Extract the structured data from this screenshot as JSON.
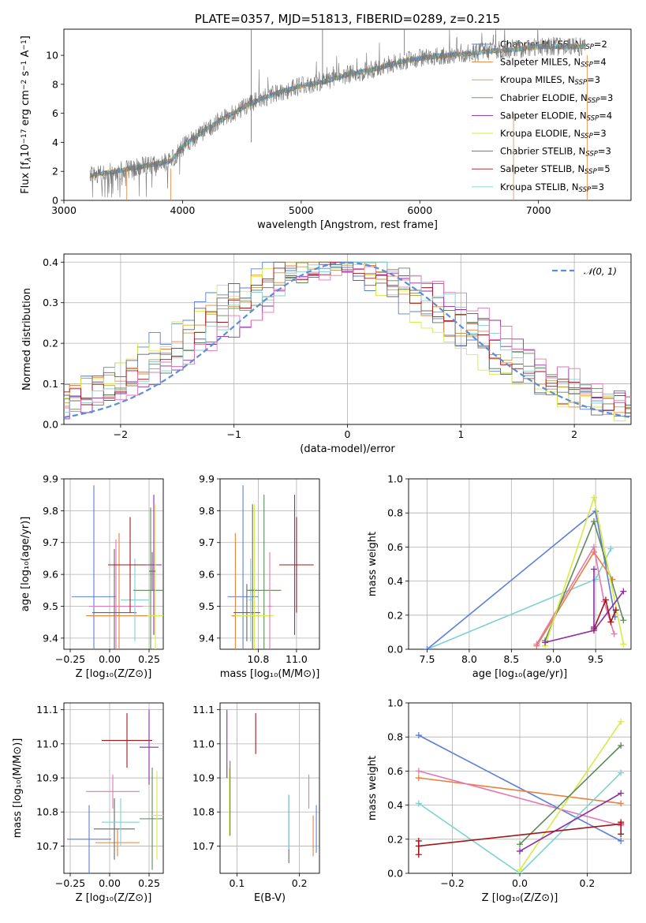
{
  "colors": {
    "Chabrier MILES": "#5b7fd9",
    "Salpeter MILES": "#e8823a",
    "Kroupa MILES": "#c79a4a",
    "Chabrier ELODIE": "#5e8a5a",
    "Salpeter ELODIE": "#8e2ba8",
    "Kroupa ELODIE": "#d7ea45",
    "Chabrier STELIB": "#666666",
    "Salpeter STELIB": "#a3171a",
    "Kroupa STELIB": "#7fd1d4",
    "pink": "#e577b3",
    "gauss": "#5b8ed6",
    "grid": "#b0b0b0"
  },
  "chart_data": [
    {
      "id": "spectrum",
      "type": "line",
      "title": "PLATE=0357, MJD=51813, FIBERID=0289, z=0.215",
      "xlabel": "wavelength [Angstrom, rest frame]",
      "ylabel": "Flux [f",
      "ylabel_parts": [
        "Flux [f",
        "λ",
        "10",
        "−17",
        " erg cm",
        "−2",
        " s",
        "−1",
        " A",
        "−1",
        "]"
      ],
      "xlim": [
        3000,
        7780
      ],
      "ylim": [
        0,
        11.8
      ],
      "xticks": [
        "3000",
        "4000",
        "5000",
        "6000",
        "7000"
      ],
      "yticks": [
        "0",
        "2",
        "4",
        "6",
        "8",
        "10"
      ],
      "continuum": {
        "x": [
          3220,
          3500,
          3700,
          3900,
          4000,
          4200,
          4400,
          4600,
          4800,
          5000,
          5200,
          5400,
          5600,
          5800,
          6000,
          6200,
          6400,
          6600,
          6800,
          7000,
          7200,
          7400
        ],
        "y": [
          1.7,
          2.1,
          2.4,
          2.7,
          3.7,
          4.9,
          5.9,
          6.8,
          7.4,
          7.9,
          8.2,
          8.7,
          9.0,
          9.5,
          9.8,
          10.0,
          10.1,
          10.3,
          10.4,
          10.6,
          10.6,
          10.6
        ]
      },
      "legend": [
        {
          "name": "Chabrier MILES, N",
          "sub": "SSP",
          "n": "=2"
        },
        {
          "name": "Salpeter MILES, N",
          "sub": "SSP",
          "n": "=4"
        },
        {
          "name": "Kroupa MILES, N",
          "sub": "SSP",
          "n": "=3"
        },
        {
          "name": "Chabrier ELODIE, N",
          "sub": "SSP",
          "n": "=3"
        },
        {
          "name": "Salpeter ELODIE, N",
          "sub": "SSP",
          "n": "=4"
        },
        {
          "name": "Kroupa ELODIE, N",
          "sub": "SSP",
          "n": "=3"
        },
        {
          "name": "Chabrier STELIB, N",
          "sub": "SSP",
          "n": "=3"
        },
        {
          "name": "Salpeter STELIB, N",
          "sub": "SSP",
          "n": "=5"
        },
        {
          "name": "Kroupa STELIB, N",
          "sub": "SSP",
          "n": "=3"
        }
      ]
    },
    {
      "id": "residuals",
      "type": "histogram",
      "xlabel": "(data-model)/error",
      "ylabel": "Normed distribution",
      "xlim": [
        -2.5,
        2.5
      ],
      "ylim": [
        0,
        0.42
      ],
      "xticks": [
        "−2",
        "−1",
        "0",
        "1",
        "2"
      ],
      "yticks": [
        "0.0",
        "0.1",
        "0.2",
        "0.3",
        "0.4"
      ],
      "legend": [
        {
          "name": "𝒩(0, 1)"
        }
      ]
    },
    {
      "id": "age_vs_Z",
      "type": "errorbar",
      "xlabel": "Z [log₁₀(Z/Z⊙)]",
      "ylabel": "age  [log₁₀(age/yr)]",
      "xlim": [
        -0.29,
        0.34
      ],
      "ylim": [
        9.365,
        9.9
      ],
      "xticks": [
        "−0.25",
        "0.00",
        "0.25"
      ],
      "yticks": [
        "9.4",
        "9.5",
        "9.6",
        "9.7",
        "9.8",
        "9.9"
      ],
      "points": [
        {
          "c": "Chabrier MILES",
          "x": -0.1,
          "xe": 0.14,
          "y": 9.53,
          "ye": 0.35
        },
        {
          "c": "Salpeter MILES",
          "x": 0.06,
          "xe": 0.21,
          "y": 9.47,
          "ye": 0.26
        },
        {
          "c": "pink",
          "x": 0.04,
          "xe": 0.17,
          "y": 9.5,
          "ye": 0.21
        },
        {
          "c": "Chabrier STELIB",
          "x": 0.03,
          "xe": 0.14,
          "y": 9.48,
          "ye": 0.2
        },
        {
          "c": "Kroupa STELIB",
          "x": 0.16,
          "xe": 0.09,
          "y": 9.52,
          "ye": 0.13
        },
        {
          "c": "Salpeter STELIB",
          "x": 0.13,
          "xe": 0.14,
          "y": 9.63,
          "ye": 0.15
        },
        {
          "c": "Chabrier ELODIE",
          "x": 0.26,
          "xe": 0.11,
          "y": 9.55,
          "ye": 0.26
        },
        {
          "c": "Salpeter ELODIE",
          "x": 0.28,
          "xe": 0.05,
          "y": 9.63,
          "ye": 0.22
        },
        {
          "c": "Kroupa ELODIE",
          "x": 0.29,
          "xe": 0.05,
          "y": 9.47,
          "ye": 0.35
        },
        {
          "c": "Chabrier STELIB",
          "x": 0.27,
          "xe": 0.02,
          "y": 9.61,
          "ye": 0.06
        }
      ]
    },
    {
      "id": "age_vs_mass",
      "type": "errorbar",
      "xlabel": "mass [log₁₀(M/M⊙)]",
      "ylabel": "",
      "xlim": [
        10.6,
        11.12
      ],
      "ylim": [
        9.365,
        9.9
      ],
      "xticks": [
        "10.8",
        "11.0"
      ],
      "yticks": [
        "9.4",
        "9.5",
        "9.6",
        "9.7",
        "9.8",
        "9.9"
      ],
      "points": [
        {
          "c": "Chabrier MILES",
          "x": 10.72,
          "xe": 0.08,
          "y": 9.53,
          "ye": 0.35
        },
        {
          "c": "Salpeter MILES",
          "x": 10.68,
          "xe": 0.02,
          "y": 9.47,
          "ye": 0.26
        },
        {
          "c": "Chabrier STELIB",
          "x": 10.74,
          "xe": 0.07,
          "y": 9.48,
          "ye": 0.09
        },
        {
          "c": "Chabrier STELIB",
          "x": 10.77,
          "xe": 0.02,
          "y": 9.55,
          "ye": 0.27
        },
        {
          "c": "Kroupa STELIB",
          "x": 10.76,
          "xe": 0.01,
          "y": 9.52,
          "ye": 0.13
        },
        {
          "c": "Chabrier ELODIE",
          "x": 10.83,
          "xe": 0.09,
          "y": 9.55,
          "ye": 0.3
        },
        {
          "c": "Kroupa ELODIE",
          "x": 10.78,
          "xe": 0.1,
          "y": 9.47,
          "ye": 0.35
        },
        {
          "c": "pink",
          "x": 10.86,
          "xe": 0.01,
          "y": 9.5,
          "ye": 0.17
        },
        {
          "c": "Salpeter ELODIE",
          "x": 10.99,
          "xe": 0.06,
          "y": 9.63,
          "ye": 0.22
        },
        {
          "c": "Salpeter STELIB",
          "x": 11.0,
          "xe": 0.09,
          "y": 9.63,
          "ye": 0.15
        }
      ]
    },
    {
      "id": "weight_vs_age",
      "type": "line",
      "xlabel": "age  [log₁₀(age/yr)]",
      "ylabel": "mass weight",
      "xlim": [
        7.28,
        9.92
      ],
      "ylim": [
        0,
        1.0
      ],
      "xticks": [
        "7.5",
        "8.0",
        "8.5",
        "9.0",
        "9.5"
      ],
      "yticks": [
        "0.0",
        "0.2",
        "0.4",
        "0.6",
        "0.8",
        "1.0"
      ],
      "series": [
        {
          "c": "Kroupa STELIB",
          "x": [
            7.5,
            9.5,
            9.68
          ],
          "y": [
            0.0,
            0.41,
            0.59
          ]
        },
        {
          "c": "Chabrier MILES",
          "x": [
            7.5,
            9.5,
            9.73
          ],
          "y": [
            0.0,
            0.81,
            0.19
          ]
        },
        {
          "c": "Salpeter MILES",
          "x": [
            8.8,
            9.48,
            9.7
          ],
          "y": [
            0.02,
            0.57,
            0.41
          ]
        },
        {
          "c": "pink",
          "x": [
            8.8,
            9.48,
            9.6,
            9.72
          ],
          "y": [
            0.03,
            0.6,
            0.28,
            0.09
          ]
        },
        {
          "c": "Chabrier ELODIE",
          "x": [
            8.9,
            9.48,
            9.83
          ],
          "y": [
            0.05,
            0.75,
            0.17
          ]
        },
        {
          "c": "Kroupa ELODIE",
          "x": [
            8.9,
            9.48,
            9.83
          ],
          "y": [
            0.02,
            0.89,
            0.03
          ]
        },
        {
          "c": "Salpeter ELODIE",
          "x": [
            8.9,
            9.48,
            9.83
          ],
          "y": [
            0.04,
            0.11,
            0.34
          ]
        },
        {
          "c": "Salpeter STELIB",
          "x": [
            9.48,
            9.62,
            9.68,
            9.74
          ],
          "y": [
            0.12,
            0.29,
            0.16,
            0.23
          ]
        },
        {
          "c": "Salpeter ELODIE",
          "x": [
            9.48,
            9.48
          ],
          "y": [
            0.13,
            0.47
          ]
        }
      ]
    },
    {
      "id": "mass_vs_Z",
      "type": "errorbar",
      "xlabel": "Z [log₁₀(Z/Z⊙)]",
      "ylabel": "mass [log₁₀(M/M⊙)]",
      "xlim": [
        -0.29,
        0.34
      ],
      "ylim": [
        10.62,
        11.12
      ],
      "xticks": [
        "−0.25",
        "0.00",
        "0.25"
      ],
      "yticks": [
        "10.7",
        "10.8",
        "10.9",
        "11.0",
        "11.1"
      ],
      "points": [
        {
          "c": "Chabrier MILES",
          "x": -0.13,
          "xe": 0.14,
          "y": 10.72,
          "ye": 0.1
        },
        {
          "c": "Salpeter MILES",
          "x": 0.05,
          "xe": 0.14,
          "y": 10.71,
          "ye": 0.04
        },
        {
          "c": "Chabrier STELIB",
          "x": 0.03,
          "xe": 0.13,
          "y": 10.75,
          "ye": 0.09
        },
        {
          "c": "Kroupa STELIB",
          "x": 0.07,
          "xe": 0.12,
          "y": 10.77,
          "ye": 0.07
        },
        {
          "c": "pink",
          "x": 0.02,
          "xe": 0.17,
          "y": 10.86,
          "ye": 0.05
        },
        {
          "c": "Salpeter STELIB",
          "x": 0.11,
          "xe": 0.16,
          "y": 11.01,
          "ye": 0.08
        },
        {
          "c": "Salpeter ELODIE",
          "x": 0.25,
          "xe": 0.06,
          "y": 10.99,
          "ye": 0.11
        },
        {
          "c": "Chabrier ELODIE",
          "x": 0.27,
          "xe": 0.08,
          "y": 10.78,
          "ye": 0.15
        },
        {
          "c": "Kroupa ELODIE",
          "x": 0.3,
          "xe": 0.04,
          "y": 10.79,
          "ye": 0.13
        }
      ]
    },
    {
      "id": "mass_vs_ebv",
      "type": "errorbar",
      "xlabel": "E(B-V)",
      "ylabel": "",
      "xlim": [
        0.073,
        0.232
      ],
      "ylim": [
        10.62,
        11.12
      ],
      "xticks": [
        "0.1",
        "0.2"
      ],
      "yticks": [
        "10.7",
        "10.8",
        "10.9",
        "11.0",
        "11.1"
      ],
      "points": [
        {
          "c": "Salpeter ELODIE",
          "x": 0.084,
          "xe": 0.0,
          "y": 11.0,
          "ye": 0.1
        },
        {
          "c": "Kroupa ELODIE",
          "x": 0.088,
          "xe": 0.0,
          "y": 10.83,
          "ye": 0.1
        },
        {
          "c": "Chabrier ELODIE",
          "x": 0.089,
          "xe": 0.0,
          "y": 10.84,
          "ye": 0.11
        },
        {
          "c": "Salpeter STELIB",
          "x": 0.13,
          "xe": 0.0,
          "y": 11.03,
          "ye": 0.06
        },
        {
          "c": "Chabrier STELIB",
          "x": 0.183,
          "xe": 0.0,
          "y": 10.75,
          "ye": 0.1
        },
        {
          "c": "Kroupa STELIB",
          "x": 0.183,
          "xe": 0.0,
          "y": 10.77,
          "ye": 0.08
        },
        {
          "c": "pink",
          "x": 0.215,
          "xe": 0.0,
          "y": 10.86,
          "ye": 0.05
        },
        {
          "c": "Salpeter MILES",
          "x": 0.222,
          "xe": 0.0,
          "y": 10.73,
          "ye": 0.06
        },
        {
          "c": "Chabrier MILES",
          "x": 0.227,
          "xe": 0.0,
          "y": 10.75,
          "ye": 0.07
        }
      ]
    },
    {
      "id": "weight_vs_Z",
      "type": "line",
      "xlabel": "Z [log₁₀(Z/Z⊙)]",
      "ylabel": "mass weight",
      "xlim": [
        -0.33,
        0.33
      ],
      "ylim": [
        0,
        1.0
      ],
      "xticks": [
        "−0.2",
        "0.0",
        "0.2"
      ],
      "yticks": [
        "0.0",
        "0.2",
        "0.4",
        "0.6",
        "0.8",
        "1.0"
      ],
      "series": [
        {
          "c": "Chabrier MILES",
          "x": [
            -0.3,
            0.3
          ],
          "y": [
            0.81,
            0.19
          ]
        },
        {
          "c": "Salpeter MILES",
          "x": [
            -0.3,
            0.3
          ],
          "y": [
            0.56,
            0.41
          ]
        },
        {
          "c": "pink",
          "x": [
            -0.3,
            0.3
          ],
          "y": [
            0.6,
            0.28
          ]
        },
        {
          "c": "Kroupa STELIB",
          "x": [
            -0.3,
            0.0,
            0.3
          ],
          "y": [
            0.41,
            0.0,
            0.59
          ]
        },
        {
          "c": "Kroupa ELODIE",
          "x": [
            0.0,
            0.3
          ],
          "y": [
            0.02,
            0.89
          ]
        },
        {
          "c": "Chabrier ELODIE",
          "x": [
            0.0,
            0.3
          ],
          "y": [
            0.17,
            0.75
          ]
        },
        {
          "c": "Salpeter ELODIE",
          "x": [
            0.0,
            0.3
          ],
          "y": [
            0.13,
            0.47
          ]
        },
        {
          "c": "Salpeter STELIB",
          "x": [
            -0.3,
            0.3
          ],
          "y": [
            0.16,
            0.29
          ]
        },
        {
          "c": "Salpeter STELIB",
          "x": [
            -0.3,
            -0.3
          ],
          "y": [
            0.11,
            0.19
          ]
        },
        {
          "c": "Salpeter STELIB",
          "x": [
            0.3,
            0.3
          ],
          "y": [
            0.23,
            0.3
          ]
        }
      ]
    }
  ]
}
